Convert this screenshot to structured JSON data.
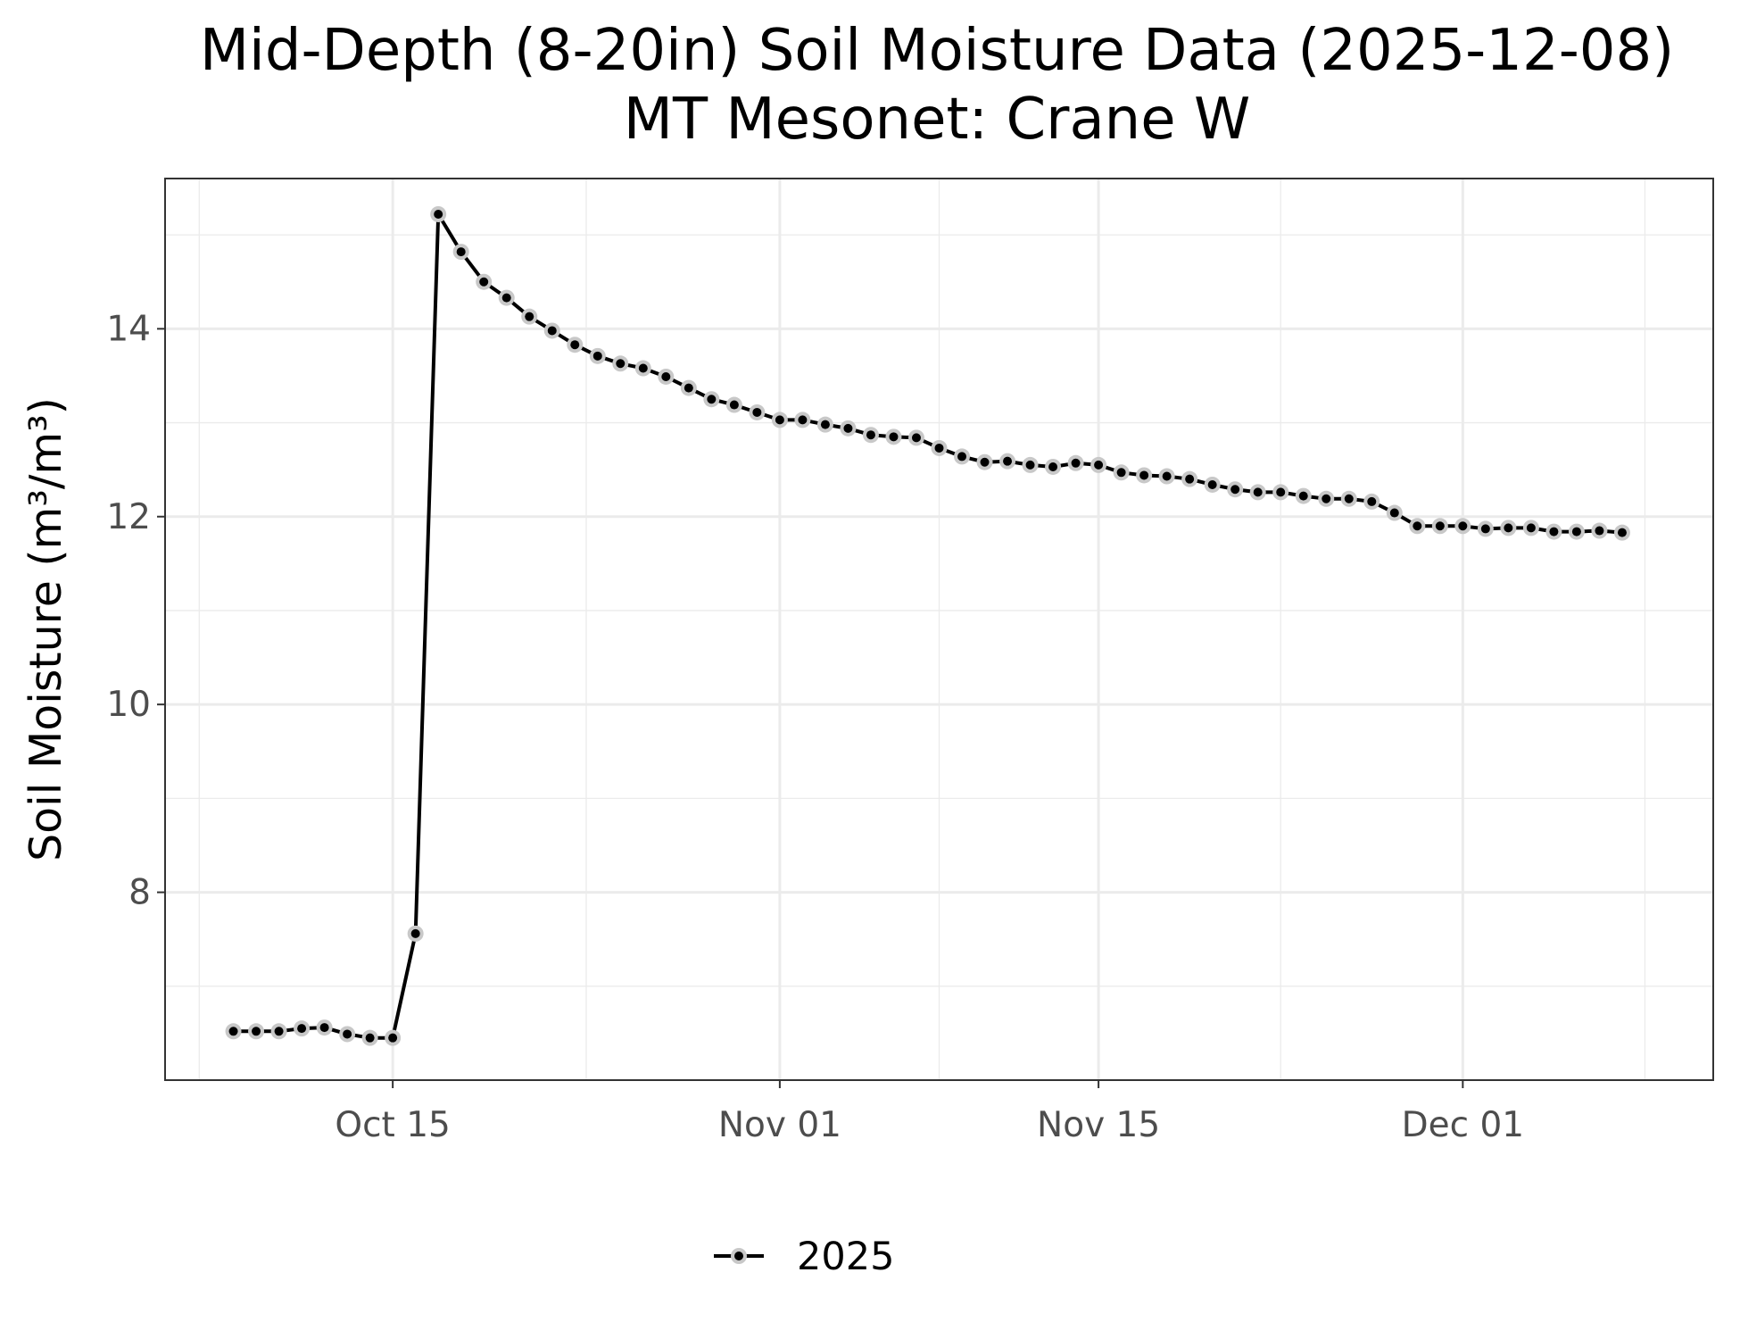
{
  "chart_data": {
    "type": "line",
    "title": "Mid-Depth (8-20in) Soil Moisture Data (2025-12-08)",
    "subtitle": "MT Mesonet: Crane W",
    "xlabel": "",
    "ylabel": "Soil Moisture (m³/m³)",
    "x_ticks": [
      {
        "date": "2025-10-15",
        "label": "Oct 15"
      },
      {
        "date": "2025-11-01",
        "label": "Nov 01"
      },
      {
        "date": "2025-11-15",
        "label": "Nov 15"
      },
      {
        "date": "2025-12-01",
        "label": "Dec 01"
      }
    ],
    "y_ticks": [
      8,
      10,
      12,
      14
    ],
    "xlim": [
      "2025-10-05",
      "2025-12-12"
    ],
    "ylim": [
      6.0,
      15.6
    ],
    "grid": true,
    "legend_position": "bottom",
    "series": [
      {
        "name": "2025",
        "color": "#000000",
        "marker_halo_color": "#c8c8c8",
        "x": [
          "2025-10-08",
          "2025-10-09",
          "2025-10-10",
          "2025-10-11",
          "2025-10-12",
          "2025-10-13",
          "2025-10-14",
          "2025-10-15",
          "2025-10-16",
          "2025-10-17",
          "2025-10-18",
          "2025-10-19",
          "2025-10-20",
          "2025-10-21",
          "2025-10-22",
          "2025-10-23",
          "2025-10-24",
          "2025-10-25",
          "2025-10-26",
          "2025-10-27",
          "2025-10-28",
          "2025-10-29",
          "2025-10-30",
          "2025-10-31",
          "2025-11-01",
          "2025-11-02",
          "2025-11-03",
          "2025-11-04",
          "2025-11-05",
          "2025-11-06",
          "2025-11-07",
          "2025-11-08",
          "2025-11-09",
          "2025-11-10",
          "2025-11-11",
          "2025-11-12",
          "2025-11-13",
          "2025-11-14",
          "2025-11-15",
          "2025-11-16",
          "2025-11-17",
          "2025-11-18",
          "2025-11-19",
          "2025-11-20",
          "2025-11-21",
          "2025-11-22",
          "2025-11-23",
          "2025-11-24",
          "2025-11-25",
          "2025-11-26",
          "2025-11-27",
          "2025-11-28",
          "2025-11-29",
          "2025-11-30",
          "2025-12-01",
          "2025-12-02",
          "2025-12-03",
          "2025-12-04",
          "2025-12-05",
          "2025-12-06",
          "2025-12-07",
          "2025-12-08"
        ],
        "values": [
          6.52,
          6.52,
          6.52,
          6.55,
          6.56,
          6.49,
          6.45,
          6.45,
          7.56,
          15.22,
          14.82,
          14.5,
          14.33,
          14.13,
          13.98,
          13.83,
          13.71,
          13.63,
          13.58,
          13.49,
          13.37,
          13.25,
          13.19,
          13.11,
          13.03,
          13.03,
          12.98,
          12.94,
          12.87,
          12.85,
          12.84,
          12.73,
          12.64,
          12.58,
          12.59,
          12.55,
          12.53,
          12.57,
          12.55,
          12.47,
          12.44,
          12.43,
          12.4,
          12.34,
          12.29,
          12.26,
          12.26,
          12.22,
          12.19,
          12.19,
          12.16,
          12.04,
          11.9,
          11.9,
          11.9,
          11.87,
          11.88,
          11.88,
          11.84,
          11.84,
          11.85,
          11.83
        ]
      }
    ]
  }
}
